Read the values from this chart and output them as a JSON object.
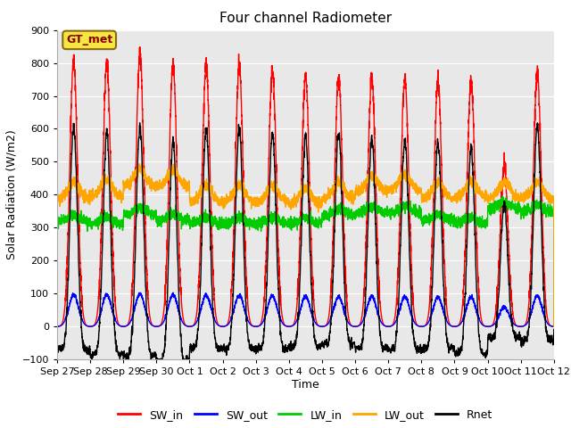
{
  "title": "Four channel Radiometer",
  "xlabel": "Time",
  "ylabel": "Solar Radiation (W/m2)",
  "ylim": [
    -100,
    900
  ],
  "background_color": "#e8e8e8",
  "legend_label": "GT_met",
  "legend_box_color": "#f5e642",
  "legend_box_edge": "#8B6914",
  "series": {
    "SW_in": {
      "color": "#ff0000",
      "lw": 1.0
    },
    "SW_out": {
      "color": "#0000ff",
      "lw": 1.0
    },
    "LW_in": {
      "color": "#00cc00",
      "lw": 1.0
    },
    "LW_out": {
      "color": "#ffa500",
      "lw": 1.0
    },
    "Rnet": {
      "color": "#000000",
      "lw": 1.0
    }
  },
  "tick_labels": [
    "Sep 27",
    "Sep 28",
    "Sep 29",
    "Sep 30",
    "Oct 1",
    "Oct 2",
    "Oct 3",
    "Oct 4",
    "Oct 5",
    "Oct 6",
    "Oct 7",
    "Oct 8",
    "Oct 9",
    "Oct 10",
    "Oct 11",
    "Oct 12"
  ],
  "num_days": 15,
  "yticks": [
    -100,
    0,
    100,
    200,
    300,
    400,
    500,
    600,
    700,
    800,
    900
  ],
  "sw_peaks": [
    808,
    800,
    825,
    800,
    792,
    792,
    780,
    762,
    758,
    755,
    758,
    748,
    742,
    490,
    775
  ],
  "lw_in_base": [
    318,
    312,
    340,
    322,
    312,
    312,
    312,
    312,
    338,
    345,
    345,
    322,
    312,
    358,
    348
  ],
  "lw_out_base": [
    388,
    395,
    428,
    425,
    378,
    378,
    378,
    372,
    388,
    408,
    412,
    388,
    392,
    388,
    388
  ],
  "rnet_night": -75,
  "figsize": [
    6.4,
    4.8
  ],
  "dpi": 100
}
